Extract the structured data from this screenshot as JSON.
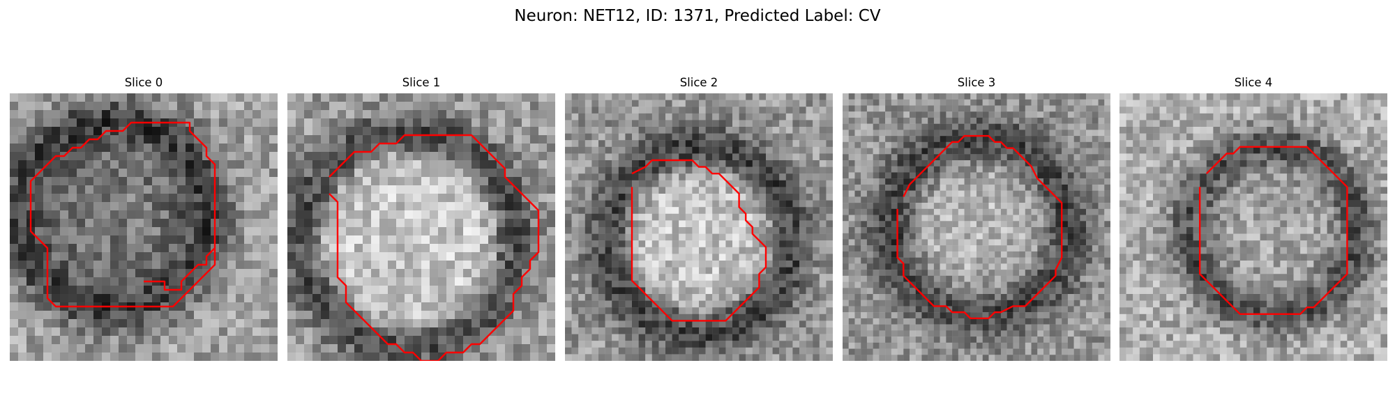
{
  "figure": {
    "title": "Neuron: NET12, ID: 1371, Predicted Label: CV"
  },
  "panels": [
    {
      "title": "Slice 0",
      "contour_color": "#ff0000",
      "contour": [
        [
          16,
          22.5
        ],
        [
          18.5,
          22.5
        ],
        [
          18.5,
          23.5
        ],
        [
          20.5,
          23.5
        ],
        [
          20.5,
          22.5
        ],
        [
          22.5,
          20.5
        ],
        [
          23.5,
          20.5
        ],
        [
          23.5,
          19.5
        ],
        [
          24.5,
          18.5
        ],
        [
          24.5,
          17.5
        ],
        [
          24.5,
          8.5
        ],
        [
          23.5,
          7.5
        ],
        [
          23.5,
          6.5
        ],
        [
          22.5,
          5.5
        ],
        [
          21.5,
          4.5
        ],
        [
          21.5,
          3.5
        ],
        [
          18.5,
          3.5
        ],
        [
          14.5,
          3.5
        ],
        [
          13.5,
          4.5
        ],
        [
          11.5,
          4.5
        ],
        [
          10.5,
          5.5
        ],
        [
          9.5,
          5.5
        ],
        [
          8.5,
          6.5
        ],
        [
          7.5,
          6.5
        ],
        [
          6.5,
          7.5
        ],
        [
          5.5,
          7.5
        ],
        [
          2.5,
          10.5
        ],
        [
          2.5,
          16.5
        ],
        [
          4.5,
          18.5
        ],
        [
          4.5,
          24.5
        ],
        [
          5.5,
          25.5
        ],
        [
          7.5,
          25.5
        ],
        [
          16,
          25.5
        ],
        [
          19.5,
          25.5
        ],
        [
          20.5,
          24.5
        ],
        [
          22.5,
          22.5
        ],
        [
          23.5,
          21.5
        ],
        [
          24.5,
          20.5
        ],
        [
          24.5,
          18.5
        ]
      ]
    },
    {
      "title": "Slice 1",
      "contour_color": "#ff0000",
      "contour": [
        [
          5,
          10
        ],
        [
          7,
          8
        ],
        [
          8,
          7
        ],
        [
          10,
          7
        ],
        [
          11,
          6
        ],
        [
          13,
          6
        ],
        [
          14,
          5
        ],
        [
          18,
          5
        ],
        [
          22,
          5
        ],
        [
          23,
          6
        ],
        [
          24,
          7
        ],
        [
          25,
          8
        ],
        [
          26,
          9
        ],
        [
          26,
          10
        ],
        [
          27,
          11
        ],
        [
          28,
          12
        ],
        [
          29,
          13
        ],
        [
          30,
          14
        ],
        [
          30,
          19
        ],
        [
          29,
          20
        ],
        [
          29,
          21
        ],
        [
          28,
          22
        ],
        [
          28,
          23
        ],
        [
          27,
          24
        ],
        [
          27,
          26
        ],
        [
          26,
          27
        ],
        [
          25,
          28
        ],
        [
          24,
          29
        ],
        [
          23,
          30
        ],
        [
          22,
          30
        ],
        [
          21,
          31
        ],
        [
          19,
          31
        ],
        [
          18,
          32
        ],
        [
          16,
          32
        ],
        [
          15,
          31
        ],
        [
          14,
          31
        ],
        [
          13,
          30
        ],
        [
          12,
          30
        ],
        [
          10,
          28
        ],
        [
          9,
          27
        ],
        [
          8,
          26
        ],
        [
          7,
          25
        ],
        [
          7,
          23
        ],
        [
          6,
          22
        ],
        [
          6,
          17
        ],
        [
          6,
          13
        ],
        [
          5,
          12
        ]
      ]
    },
    {
      "title": "Slice 2",
      "contour_color": "#ff0000",
      "contour": [
        [
          10,
          12
        ],
        [
          12,
          11
        ],
        [
          13,
          10
        ],
        [
          16,
          10
        ],
        [
          19,
          10
        ],
        [
          20,
          11
        ],
        [
          21,
          11
        ],
        [
          22,
          12
        ],
        [
          23,
          12
        ],
        [
          24,
          13
        ],
        [
          25,
          14
        ],
        [
          26,
          15
        ],
        [
          26,
          17
        ],
        [
          27,
          18
        ],
        [
          27,
          19
        ],
        [
          28,
          20
        ],
        [
          28,
          21
        ],
        [
          29,
          22
        ],
        [
          30,
          23
        ],
        [
          30,
          26
        ],
        [
          29,
          27
        ],
        [
          29,
          29
        ],
        [
          28,
          30
        ],
        [
          27,
          31
        ],
        [
          26,
          32
        ],
        [
          25,
          33
        ],
        [
          24,
          34
        ],
        [
          21,
          34
        ],
        [
          17,
          34
        ],
        [
          16,
          34
        ],
        [
          15,
          33
        ],
        [
          14,
          32
        ],
        [
          13,
          31
        ],
        [
          12,
          30
        ],
        [
          11,
          29
        ],
        [
          10,
          28
        ],
        [
          10,
          23
        ],
        [
          10,
          18
        ],
        [
          10,
          14
        ]
      ]
    },
    {
      "title": "Slice 3",
      "contour_color": "#ff0000",
      "contour": [
        [
          10,
          17
        ],
        [
          11,
          15
        ],
        [
          12,
          14
        ],
        [
          13,
          13
        ],
        [
          14,
          12
        ],
        [
          15,
          11
        ],
        [
          16,
          10
        ],
        [
          17,
          9
        ],
        [
          18,
          8
        ],
        [
          19,
          8
        ],
        [
          20,
          7
        ],
        [
          22,
          7
        ],
        [
          24,
          7
        ],
        [
          25,
          8
        ],
        [
          26,
          8
        ],
        [
          27,
          9
        ],
        [
          28,
          9
        ],
        [
          29,
          10
        ],
        [
          30,
          11
        ],
        [
          31,
          12
        ],
        [
          32,
          14
        ],
        [
          33,
          15
        ],
        [
          34,
          16
        ],
        [
          35,
          17
        ],
        [
          36,
          18
        ],
        [
          36,
          20
        ],
        [
          36,
          23
        ],
        [
          36,
          27
        ],
        [
          35,
          29
        ],
        [
          35,
          30
        ],
        [
          34,
          31
        ],
        [
          33,
          32
        ],
        [
          32,
          33
        ],
        [
          31,
          34
        ],
        [
          30,
          35
        ],
        [
          28,
          35
        ],
        [
          26,
          36
        ],
        [
          25,
          36
        ],
        [
          24,
          37
        ],
        [
          21,
          37
        ],
        [
          20,
          36
        ],
        [
          18,
          36
        ],
        [
          17,
          35
        ],
        [
          15,
          35
        ],
        [
          14,
          34
        ],
        [
          13,
          33
        ],
        [
          12,
          32
        ],
        [
          11,
          31
        ],
        [
          10,
          30
        ],
        [
          10,
          28
        ],
        [
          9,
          27
        ],
        [
          9,
          25
        ],
        [
          9,
          22
        ],
        [
          9,
          19
        ]
      ]
    },
    {
      "title": "Slice 4",
      "contour_color": "#ff0000",
      "contour": [
        [
          13,
          12
        ],
        [
          15,
          10
        ],
        [
          16,
          9
        ],
        [
          17,
          9
        ],
        [
          18,
          8
        ],
        [
          20,
          8
        ],
        [
          22,
          8
        ],
        [
          26,
          8
        ],
        [
          28,
          8
        ],
        [
          29,
          9
        ],
        [
          30,
          10
        ],
        [
          31,
          11
        ],
        [
          32,
          12
        ],
        [
          33,
          13
        ],
        [
          34,
          14
        ],
        [
          34,
          18
        ],
        [
          34,
          22
        ],
        [
          34,
          27
        ],
        [
          33,
          28
        ],
        [
          32,
          29
        ],
        [
          31,
          30
        ],
        [
          30,
          31
        ],
        [
          29,
          32
        ],
        [
          28,
          32
        ],
        [
          27,
          33
        ],
        [
          24,
          33
        ],
        [
          21,
          33
        ],
        [
          19,
          33
        ],
        [
          18,
          33
        ],
        [
          17,
          32
        ],
        [
          16,
          31
        ],
        [
          15,
          30
        ],
        [
          14,
          29
        ],
        [
          13,
          28
        ],
        [
          12,
          27
        ],
        [
          12,
          24
        ],
        [
          12,
          18
        ],
        [
          12,
          14
        ]
      ]
    }
  ]
}
